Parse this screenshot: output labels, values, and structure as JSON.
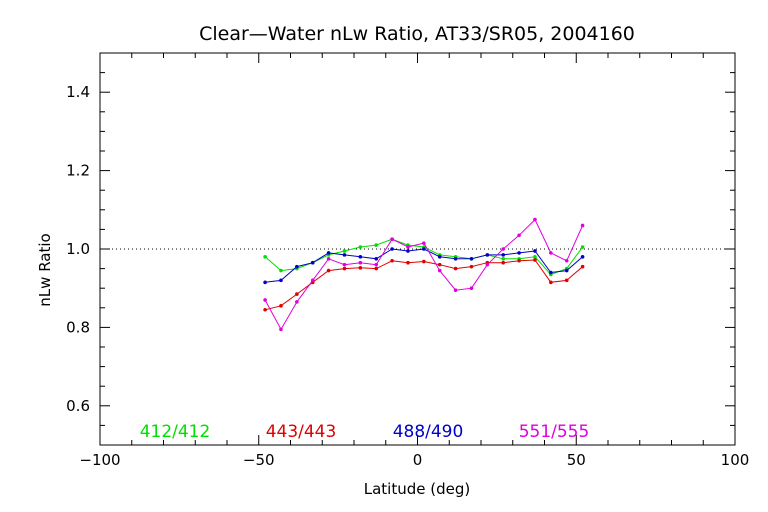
{
  "chart_data": {
    "type": "line",
    "title": "Clear—Water nLw Ratio, AT33/SR05, 2004160",
    "xlabel": "Latitude (deg)",
    "ylabel": "nLw Ratio",
    "xlim": [
      -100,
      100
    ],
    "ylim": [
      0.5,
      1.5
    ],
    "x_ticks": [
      -100,
      -50,
      0,
      50,
      100
    ],
    "x_tick_labels": [
      "−100",
      "−50",
      "0",
      "50",
      "100"
    ],
    "y_ticks": [
      0.6,
      0.8,
      1.0,
      1.2,
      1.4
    ],
    "y_tick_labels": [
      "0.6",
      "0.8",
      "1.0",
      "1.2",
      "1.4"
    ],
    "reference_line": 1.0,
    "grid": false,
    "legend_position": "bottom-inside",
    "x": [
      -48,
      -43,
      -38,
      -33,
      -28,
      -23,
      -18,
      -13,
      -8,
      -3,
      2,
      7,
      12,
      17,
      22,
      27,
      32,
      37,
      42,
      47,
      52
    ],
    "series": [
      {
        "name": "412/412",
        "color": "#00e000",
        "values": [
          0.98,
          0.945,
          0.95,
          0.965,
          0.985,
          0.995,
          1.005,
          1.01,
          1.025,
          1.01,
          1.005,
          0.985,
          0.98,
          0.975,
          0.985,
          0.975,
          0.975,
          0.98,
          0.935,
          0.95,
          1.005
        ]
      },
      {
        "name": "443/443",
        "color": "#e00000",
        "values": [
          0.845,
          0.855,
          0.885,
          0.915,
          0.945,
          0.95,
          0.952,
          0.95,
          0.97,
          0.965,
          0.968,
          0.96,
          0.95,
          0.955,
          0.965,
          0.965,
          0.97,
          0.972,
          0.915,
          0.92,
          0.955
        ]
      },
      {
        "name": "488/490",
        "color": "#0000c8",
        "values": [
          0.915,
          0.92,
          0.955,
          0.965,
          0.99,
          0.985,
          0.98,
          0.975,
          1.0,
          0.995,
          1.0,
          0.98,
          0.975,
          0.975,
          0.985,
          0.985,
          0.99,
          0.995,
          0.94,
          0.945,
          0.98
        ]
      },
      {
        "name": "551/555",
        "color": "#e000e0",
        "values": [
          0.87,
          0.795,
          0.865,
          0.92,
          0.975,
          0.96,
          0.965,
          0.96,
          1.025,
          1.005,
          1.015,
          0.945,
          0.895,
          0.9,
          0.96,
          1.0,
          1.035,
          1.075,
          0.99,
          0.97,
          1.06
        ]
      }
    ]
  }
}
